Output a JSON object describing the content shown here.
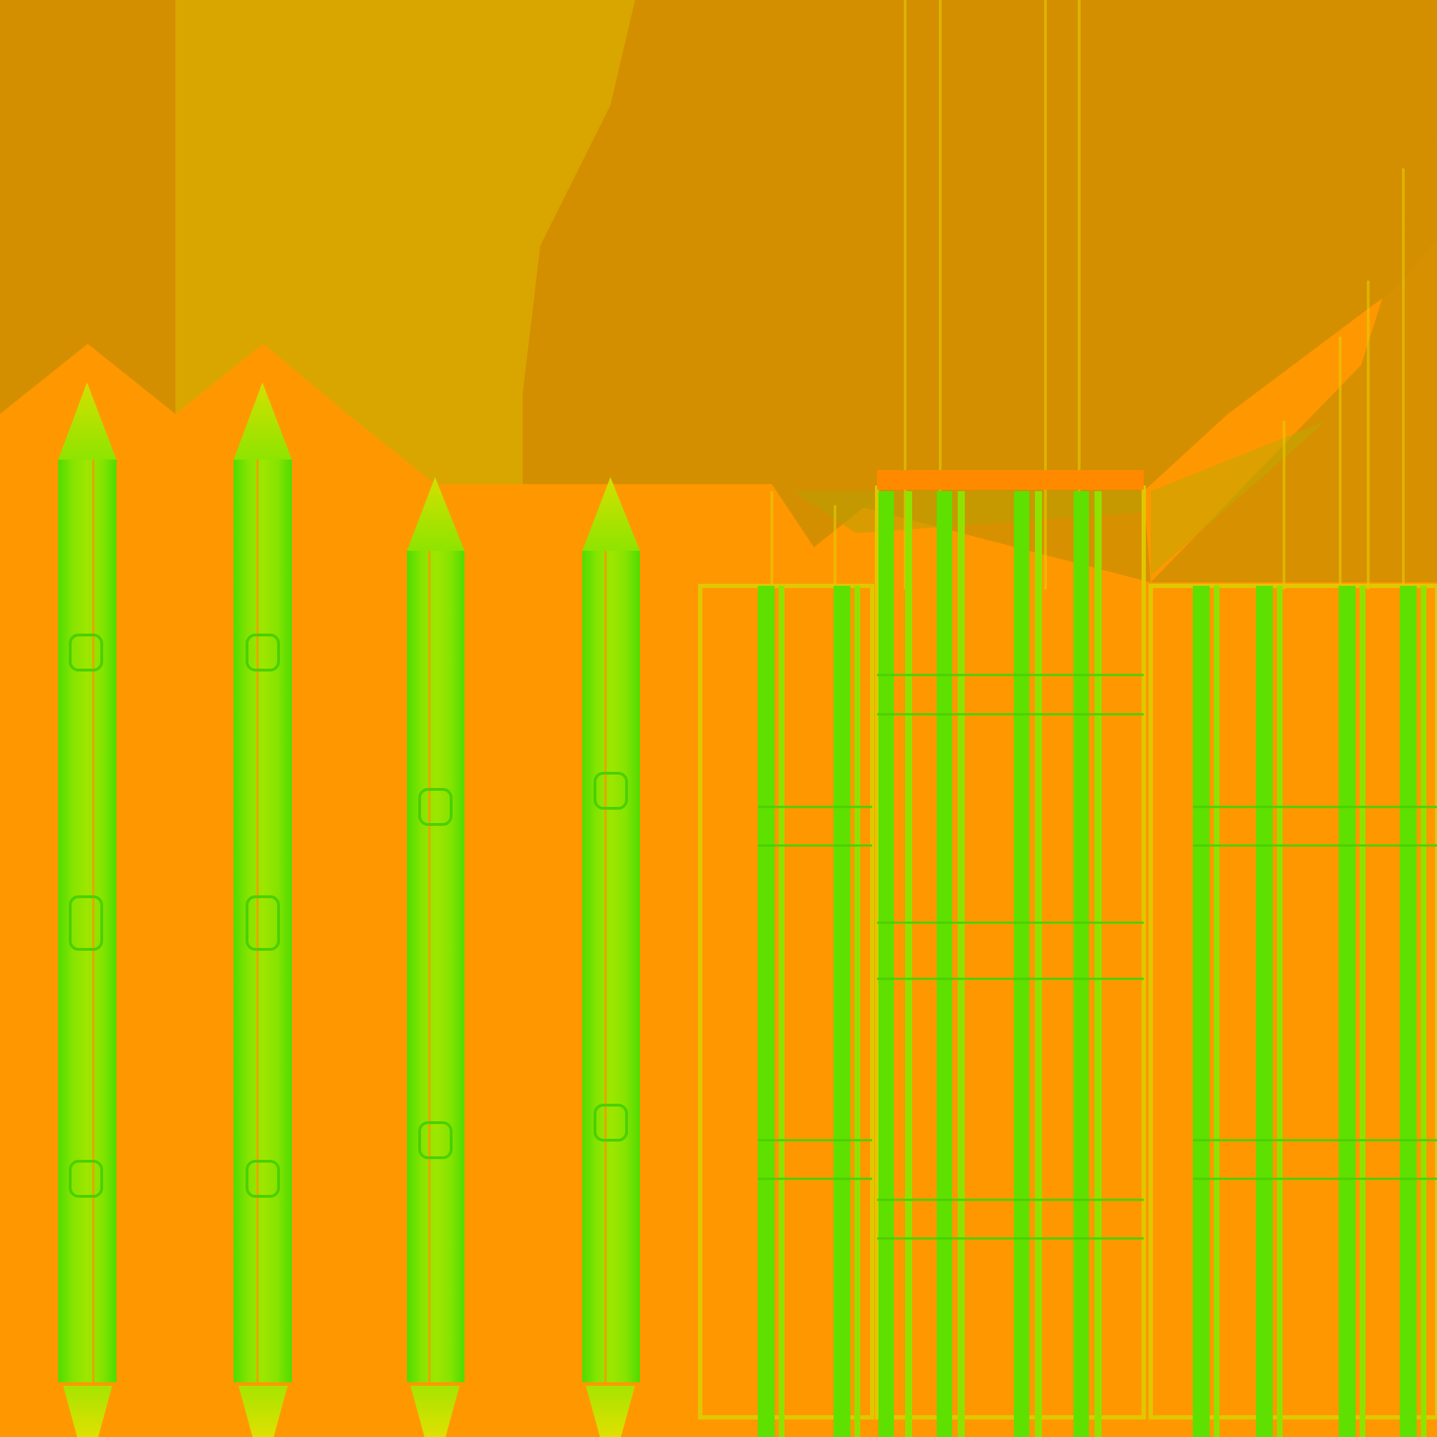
{
  "texture": {
    "kind": "uv-texture-atlas",
    "colors": {
      "background_top": "#d38f00",
      "background_bottom": "#ff9800",
      "band_light": "#d9a600",
      "plank_green": "#66e800",
      "plank_green_light": "#9ee600",
      "tip_yellow": "#c8e800",
      "rail_yellow": "#e0d000"
    },
    "elements": [
      {
        "name": "picket-1",
        "kind": "picket",
        "knobs": 3
      },
      {
        "name": "picket-2",
        "kind": "picket",
        "knobs": 3
      },
      {
        "name": "picket-3",
        "kind": "picket",
        "knobs": 2
      },
      {
        "name": "picket-4",
        "kind": "picket",
        "knobs": 2
      },
      {
        "name": "panel-left",
        "kind": "slat-panel"
      },
      {
        "name": "panel-center",
        "kind": "slat-panel"
      },
      {
        "name": "panel-right",
        "kind": "slat-panel"
      }
    ]
  }
}
